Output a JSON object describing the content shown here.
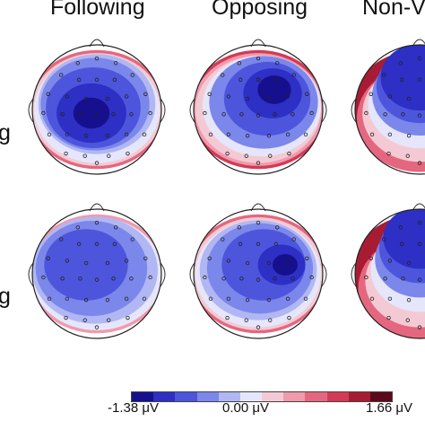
{
  "figure": {
    "columns": [
      "Following",
      "Opposing",
      "Non-V"
    ],
    "row_labels": [
      "g",
      "g"
    ],
    "colorbar": {
      "min_label": "-1.38 μV",
      "mid_label": "0.00 μV",
      "max_label": "1.66 μV",
      "colors": [
        "#16108f",
        "#2e2fc4",
        "#4d55dc",
        "#7b87ea",
        "#b0b7f2",
        "#e6e6fb",
        "#f3cad4",
        "#f09aad",
        "#e5677f",
        "#d43a55",
        "#a81c33",
        "#5c0a19"
      ]
    },
    "maps": [
      {
        "name": "following-top"
      },
      {
        "name": "opposing-top"
      },
      {
        "name": "nonv-top"
      },
      {
        "name": "following-bottom"
      },
      {
        "name": "opposing-bottom"
      },
      {
        "name": "nonv-bottom"
      }
    ]
  }
}
